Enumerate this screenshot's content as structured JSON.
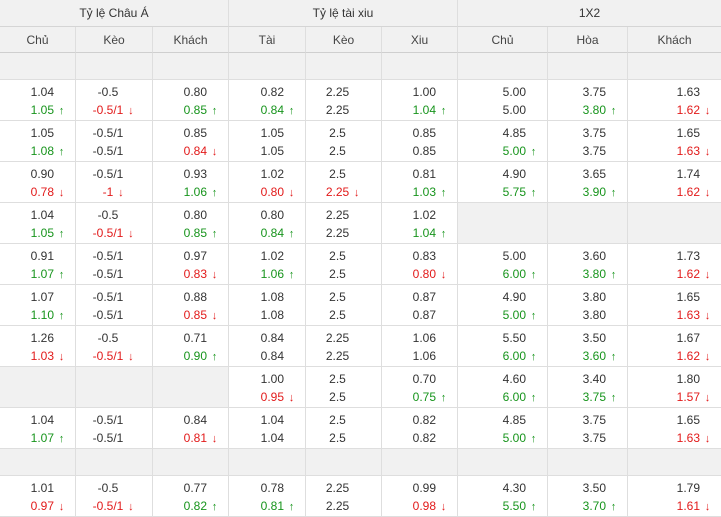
{
  "groups": [
    "Tỷ lệ Châu Á",
    "Tỷ lệ tài xiu",
    "1X2"
  ],
  "columns": [
    "Chủ",
    "Kèo",
    "Khách",
    "Tài",
    "Kèo",
    "Xiu",
    "Chủ",
    "Hòa",
    "Khách"
  ],
  "arrow_glyphs": {
    "up": "↑",
    "down": "↓"
  },
  "colors": {
    "up": "#17941c",
    "down": "#e21a1a",
    "header_bg": "#f1f1f1",
    "border": "#dedede"
  },
  "rows": [
    {
      "type": "empty"
    },
    {
      "type": "data",
      "cells": [
        [
          {
            "t": "1.04"
          },
          {
            "t": "1.05",
            "d": "up"
          }
        ],
        [
          {
            "t": "-0.5"
          },
          {
            "t": "-0.5/1",
            "d": "down"
          }
        ],
        [
          {
            "t": "0.80"
          },
          {
            "t": "0.85",
            "d": "up"
          }
        ],
        [
          {
            "t": "0.82"
          },
          {
            "t": "0.84",
            "d": "up"
          }
        ],
        [
          {
            "t": "2.25"
          },
          {
            "t": "2.25"
          }
        ],
        [
          {
            "t": "1.00"
          },
          {
            "t": "1.04",
            "d": "up"
          }
        ],
        [
          {
            "t": "5.00"
          },
          {
            "t": "5.00"
          }
        ],
        [
          {
            "t": "3.75"
          },
          {
            "t": "3.80",
            "d": "up"
          }
        ],
        [
          {
            "t": "1.63"
          },
          {
            "t": "1.62",
            "d": "down"
          }
        ]
      ]
    },
    {
      "type": "data",
      "cells": [
        [
          {
            "t": "1.05"
          },
          {
            "t": "1.08",
            "d": "up"
          }
        ],
        [
          {
            "t": "-0.5/1"
          },
          {
            "t": "-0.5/1"
          }
        ],
        [
          {
            "t": "0.85"
          },
          {
            "t": "0.84",
            "d": "down"
          }
        ],
        [
          {
            "t": "1.05"
          },
          {
            "t": "1.05"
          }
        ],
        [
          {
            "t": "2.5"
          },
          {
            "t": "2.5"
          }
        ],
        [
          {
            "t": "0.85"
          },
          {
            "t": "0.85"
          }
        ],
        [
          {
            "t": "4.85"
          },
          {
            "t": "5.00",
            "d": "up"
          }
        ],
        [
          {
            "t": "3.75"
          },
          {
            "t": "3.75"
          }
        ],
        [
          {
            "t": "1.65"
          },
          {
            "t": "1.63",
            "d": "down"
          }
        ]
      ]
    },
    {
      "type": "data",
      "cells": [
        [
          {
            "t": "0.90"
          },
          {
            "t": "0.78",
            "d": "down"
          }
        ],
        [
          {
            "t": "-0.5/1"
          },
          {
            "t": "-1",
            "d": "down"
          }
        ],
        [
          {
            "t": "0.93"
          },
          {
            "t": "1.06",
            "d": "up"
          }
        ],
        [
          {
            "t": "1.02"
          },
          {
            "t": "0.80",
            "d": "down"
          }
        ],
        [
          {
            "t": "2.5"
          },
          {
            "t": "2.25",
            "d": "down"
          }
        ],
        [
          {
            "t": "0.81"
          },
          {
            "t": "1.03",
            "d": "up"
          }
        ],
        [
          {
            "t": "4.90"
          },
          {
            "t": "5.75",
            "d": "up"
          }
        ],
        [
          {
            "t": "3.65"
          },
          {
            "t": "3.90",
            "d": "up"
          }
        ],
        [
          {
            "t": "1.74"
          },
          {
            "t": "1.62",
            "d": "down"
          }
        ]
      ]
    },
    {
      "type": "data",
      "cells": [
        [
          {
            "t": "1.04"
          },
          {
            "t": "1.05",
            "d": "up"
          }
        ],
        [
          {
            "t": "-0.5"
          },
          {
            "t": "-0.5/1",
            "d": "down"
          }
        ],
        [
          {
            "t": "0.80"
          },
          {
            "t": "0.85",
            "d": "up"
          }
        ],
        [
          {
            "t": "0.80"
          },
          {
            "t": "0.84",
            "d": "up"
          }
        ],
        [
          {
            "t": "2.25"
          },
          {
            "t": "2.25"
          }
        ],
        [
          {
            "t": "1.02"
          },
          {
            "t": "1.04",
            "d": "up"
          }
        ],
        [],
        [],
        []
      ]
    },
    {
      "type": "data",
      "cells": [
        [
          {
            "t": "0.91"
          },
          {
            "t": "1.07",
            "d": "up"
          }
        ],
        [
          {
            "t": "-0.5/1"
          },
          {
            "t": "-0.5/1"
          }
        ],
        [
          {
            "t": "0.97"
          },
          {
            "t": "0.83",
            "d": "down"
          }
        ],
        [
          {
            "t": "1.02"
          },
          {
            "t": "1.06",
            "d": "up"
          }
        ],
        [
          {
            "t": "2.5"
          },
          {
            "t": "2.5"
          }
        ],
        [
          {
            "t": "0.83"
          },
          {
            "t": "0.80",
            "d": "down"
          }
        ],
        [
          {
            "t": "5.00"
          },
          {
            "t": "6.00",
            "d": "up"
          }
        ],
        [
          {
            "t": "3.60"
          },
          {
            "t": "3.80",
            "d": "up"
          }
        ],
        [
          {
            "t": "1.73"
          },
          {
            "t": "1.62",
            "d": "down"
          }
        ]
      ]
    },
    {
      "type": "data",
      "cells": [
        [
          {
            "t": "1.07"
          },
          {
            "t": "1.10",
            "d": "up"
          }
        ],
        [
          {
            "t": "-0.5/1"
          },
          {
            "t": "-0.5/1"
          }
        ],
        [
          {
            "t": "0.88"
          },
          {
            "t": "0.85",
            "d": "down"
          }
        ],
        [
          {
            "t": "1.08"
          },
          {
            "t": "1.08"
          }
        ],
        [
          {
            "t": "2.5"
          },
          {
            "t": "2.5"
          }
        ],
        [
          {
            "t": "0.87"
          },
          {
            "t": "0.87"
          }
        ],
        [
          {
            "t": "4.90"
          },
          {
            "t": "5.00",
            "d": "up"
          }
        ],
        [
          {
            "t": "3.80"
          },
          {
            "t": "3.80"
          }
        ],
        [
          {
            "t": "1.65"
          },
          {
            "t": "1.63",
            "d": "down"
          }
        ]
      ]
    },
    {
      "type": "data",
      "cells": [
        [
          {
            "t": "1.26"
          },
          {
            "t": "1.03",
            "d": "down"
          }
        ],
        [
          {
            "t": "-0.5"
          },
          {
            "t": "-0.5/1",
            "d": "down"
          }
        ],
        [
          {
            "t": "0.71"
          },
          {
            "t": "0.90",
            "d": "up"
          }
        ],
        [
          {
            "t": "0.84"
          },
          {
            "t": "0.84"
          }
        ],
        [
          {
            "t": "2.25"
          },
          {
            "t": "2.25"
          }
        ],
        [
          {
            "t": "1.06"
          },
          {
            "t": "1.06"
          }
        ],
        [
          {
            "t": "5.50"
          },
          {
            "t": "6.00",
            "d": "up"
          }
        ],
        [
          {
            "t": "3.50"
          },
          {
            "t": "3.60",
            "d": "up"
          }
        ],
        [
          {
            "t": "1.67"
          },
          {
            "t": "1.62",
            "d": "down"
          }
        ]
      ]
    },
    {
      "type": "data",
      "cells": [
        [],
        [],
        [],
        [
          {
            "t": "1.00"
          },
          {
            "t": "0.95",
            "d": "down"
          }
        ],
        [
          {
            "t": "2.5"
          },
          {
            "t": "2.5"
          }
        ],
        [
          {
            "t": "0.70"
          },
          {
            "t": "0.75",
            "d": "up"
          }
        ],
        [
          {
            "t": "4.60"
          },
          {
            "t": "6.00",
            "d": "up"
          }
        ],
        [
          {
            "t": "3.40"
          },
          {
            "t": "3.75",
            "d": "up"
          }
        ],
        [
          {
            "t": "1.80"
          },
          {
            "t": "1.57",
            "d": "down"
          }
        ]
      ]
    },
    {
      "type": "data",
      "cells": [
        [
          {
            "t": "1.04"
          },
          {
            "t": "1.07",
            "d": "up"
          }
        ],
        [
          {
            "t": "-0.5/1"
          },
          {
            "t": "-0.5/1"
          }
        ],
        [
          {
            "t": "0.84"
          },
          {
            "t": "0.81",
            "d": "down"
          }
        ],
        [
          {
            "t": "1.04"
          },
          {
            "t": "1.04"
          }
        ],
        [
          {
            "t": "2.5"
          },
          {
            "t": "2.5"
          }
        ],
        [
          {
            "t": "0.82"
          },
          {
            "t": "0.82"
          }
        ],
        [
          {
            "t": "4.85"
          },
          {
            "t": "5.00",
            "d": "up"
          }
        ],
        [
          {
            "t": "3.75"
          },
          {
            "t": "3.75"
          }
        ],
        [
          {
            "t": "1.65"
          },
          {
            "t": "1.63",
            "d": "down"
          }
        ]
      ]
    },
    {
      "type": "empty"
    },
    {
      "type": "data",
      "cells": [
        [
          {
            "t": "1.01"
          },
          {
            "t": "0.97",
            "d": "down"
          }
        ],
        [
          {
            "t": "-0.5"
          },
          {
            "t": "-0.5/1",
            "d": "down"
          }
        ],
        [
          {
            "t": "0.77"
          },
          {
            "t": "0.82",
            "d": "up"
          }
        ],
        [
          {
            "t": "0.78"
          },
          {
            "t": "0.81",
            "d": "up"
          }
        ],
        [
          {
            "t": "2.25"
          },
          {
            "t": "2.25"
          }
        ],
        [
          {
            "t": "0.99"
          },
          {
            "t": "0.98",
            "d": "down"
          }
        ],
        [
          {
            "t": "4.30"
          },
          {
            "t": "5.50",
            "d": "up"
          }
        ],
        [
          {
            "t": "3.50"
          },
          {
            "t": "3.70",
            "d": "up"
          }
        ],
        [
          {
            "t": "1.79"
          },
          {
            "t": "1.61",
            "d": "down"
          }
        ]
      ]
    }
  ]
}
